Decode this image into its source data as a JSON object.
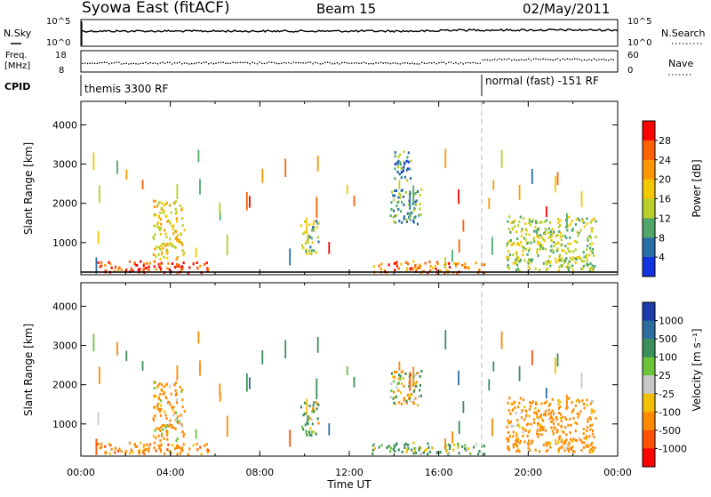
{
  "header": {
    "station": "Syowa East (fitACF)",
    "beam": "Beam 15",
    "date": "02/May/2011"
  },
  "panels": {
    "nsky_label": "N.Sky",
    "nsky_ticks": [
      "10^5",
      "10^0"
    ],
    "nsearch_label": "N.Search",
    "freq_label_1": "Freq.",
    "freq_label_2": "[MHz]",
    "freq_ticks": [
      "18",
      "8"
    ],
    "nave_label": "Nave",
    "nave_ticks": [
      "60",
      "0"
    ],
    "cpid_label": "CPID",
    "mode_1": "themis 3300 RF",
    "mode_2": "normal (fast) -151 RF"
  },
  "axes": {
    "ylabel": "Slant Range [km]",
    "xlabel": "Time UT",
    "yticks": [
      1000,
      2000,
      3000,
      4000
    ],
    "ylim": [
      180,
      4600
    ],
    "xlim": [
      0,
      24
    ],
    "xticks": [
      "00:00",
      "04:00",
      "08:00",
      "12:00",
      "16:00",
      "20:00",
      "00:00"
    ]
  },
  "colorbars": {
    "power": {
      "label": "Power [dB]",
      "ticks": [
        "28",
        "24",
        "20",
        "16",
        "12",
        "8",
        "4"
      ],
      "colors": [
        "#ff0000",
        "#ff6000",
        "#ff9800",
        "#f2c800",
        "#b8cf2a",
        "#4fa86a",
        "#2a6ea6",
        "#1234e0"
      ]
    },
    "velocity": {
      "label": "Velocity [m s⁻¹]",
      "ticks": [
        "1000",
        "500",
        "100",
        "25",
        "-25",
        "-100",
        "-500",
        "-1000"
      ],
      "colors": [
        "#1c3ca8",
        "#2e6e9e",
        "#3b8f5a",
        "#6cc43a",
        "#c8c8c8",
        "#f2c000",
        "#ff8a00",
        "#ff5000",
        "#ff0000"
      ]
    }
  },
  "chart_data": [
    {
      "type": "heatmap",
      "title": "Power [dB]",
      "xlabel": "Time UT",
      "ylabel": "Slant Range [km]",
      "xlim": [
        0,
        24
      ],
      "ylim": [
        180,
        4600
      ],
      "echo_regions": [
        {
          "t": [
            0.5,
            5.8
          ],
          "range": [
            250,
            550
          ],
          "value": 26
        },
        {
          "t": [
            3.2,
            4.6
          ],
          "range": [
            600,
            2100
          ],
          "value": 16
        },
        {
          "t": [
            9.8,
            10.6
          ],
          "range": [
            700,
            1600
          ],
          "value": 10
        },
        {
          "t": [
            13.8,
            15.2
          ],
          "range": [
            1500,
            2400
          ],
          "value": 8
        },
        {
          "t": [
            14.0,
            14.8
          ],
          "range": [
            2600,
            3400
          ],
          "value": 6
        },
        {
          "t": [
            13.0,
            18.0
          ],
          "range": [
            250,
            550
          ],
          "value": 22
        },
        {
          "t": [
            19.0,
            23.0
          ],
          "range": [
            300,
            1700
          ],
          "value": 12
        }
      ]
    },
    {
      "type": "heatmap",
      "title": "Velocity [m s⁻¹]",
      "xlabel": "Time UT",
      "ylabel": "Slant Range [km]",
      "xlim": [
        0,
        24
      ],
      "ylim": [
        180,
        4600
      ],
      "echo_regions": [
        {
          "t": [
            0.5,
            5.8
          ],
          "range": [
            250,
            550
          ],
          "value": -300
        },
        {
          "t": [
            3.2,
            4.6
          ],
          "range": [
            600,
            2100
          ],
          "value": -150
        },
        {
          "t": [
            9.8,
            10.6
          ],
          "range": [
            700,
            1600
          ],
          "value": 80
        },
        {
          "t": [
            13.8,
            15.2
          ],
          "range": [
            1500,
            2400
          ],
          "value": 0
        },
        {
          "t": [
            13.0,
            18.0
          ],
          "range": [
            250,
            550
          ],
          "value": 150
        },
        {
          "t": [
            19.0,
            23.0
          ],
          "range": [
            300,
            1700
          ],
          "value": -250
        }
      ]
    }
  ]
}
